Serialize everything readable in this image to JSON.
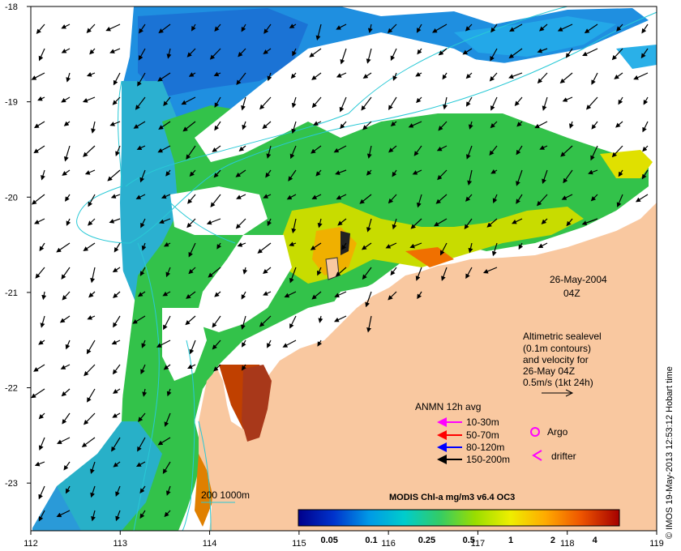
{
  "map": {
    "lon_range": [
      112,
      119
    ],
    "lat_range": [
      -23.5,
      -18
    ],
    "lon_ticks": [
      "112",
      "113",
      "114",
      "115",
      "116",
      "117",
      "118",
      "119"
    ],
    "lat_ticks": [
      "-18",
      "-19",
      "-20",
      "-21",
      "-22",
      "-23"
    ],
    "land_color": "#f9c8a0",
    "contour_color": "#29c9d6"
  },
  "date_label": {
    "line1": "26-May-2004",
    "line2": "04Z"
  },
  "altimetry_note": {
    "lines": [
      "Altimetric sealevel",
      "(0.1m contours)",
      "and velocity for",
      "26-May 04Z",
      "0.5m/s (1kt 24h)"
    ]
  },
  "legend": {
    "title": "ANMN 12h avg",
    "items": [
      {
        "label": "10-30m",
        "color": "#ff00ff"
      },
      {
        "label": "50-70m",
        "color": "#ff0000"
      },
      {
        "label": "80-120m",
        "color": "#0000ff"
      },
      {
        "label": "150-200m",
        "color": "#000000"
      }
    ],
    "argo_label": "Argo",
    "drifter_label": "drifter",
    "marker_color": "#ff00ff"
  },
  "depth_key": {
    "label": "200  1000m"
  },
  "colorbar": {
    "title": "MODIS Chl-a mg/m3 v6.4 OC3",
    "tick_labels": [
      "0.05",
      "0.1",
      "0.25",
      "0.5",
      "1",
      "2",
      "4"
    ],
    "stops": [
      "#00008b",
      "#0033cc",
      "#0099e6",
      "#00cccc",
      "#33cc66",
      "#99dd00",
      "#eeee00",
      "#ffaa00",
      "#ee5500",
      "#a50000"
    ]
  },
  "credit": "© IMOS 19-May-2013 12:53:12 Hobart time"
}
